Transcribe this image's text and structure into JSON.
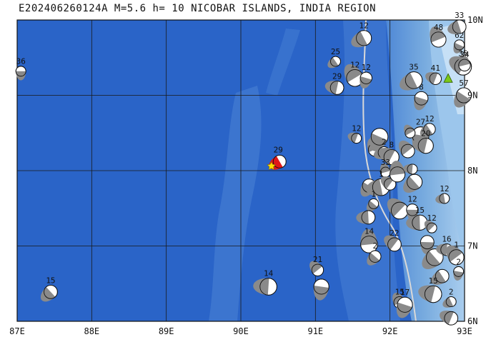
{
  "title": "E202406260124A M=5.6 h= 10 NICOBAR ISLANDS, INDIA REGION",
  "map": {
    "lon_range": [
      87,
      93
    ],
    "lat_range": [
      6,
      10
    ],
    "lon_labels": [
      "87E",
      "88E",
      "89E",
      "90E",
      "91E",
      "92E",
      "93E"
    ],
    "lat_labels": [
      "6N",
      "7N",
      "8N",
      "9N",
      "10N"
    ],
    "colors": {
      "ocean": "#2a64c8",
      "shelf": "#6aa0dc",
      "trench": "#3f7ad2",
      "grid": "#1a1a1a",
      "plate_boundary": "#d8d8d8",
      "main_event": "#e01818",
      "epicenter": "#ffe000",
      "volcano": "#7cc818"
    }
  },
  "main_event": {
    "lon": 90.52,
    "lat": 8.12,
    "depth": "29"
  },
  "epicenter_marker": {
    "lon": 90.41,
    "lat": 8.06
  },
  "volcano_marker": {
    "lon": 92.78,
    "lat": 9.22
  },
  "events": [
    {
      "lon": 87.05,
      "lat": 9.32,
      "depth": "36"
    },
    {
      "lon": 87.45,
      "lat": 6.39,
      "depth": "15"
    },
    {
      "lon": 90.37,
      "lat": 6.46,
      "depth": "14"
    },
    {
      "lon": 91.03,
      "lat": 6.68,
      "depth": "21"
    },
    {
      "lon": 91.08,
      "lat": 6.46,
      "depth": ""
    },
    {
      "lon": 91.27,
      "lat": 9.45,
      "depth": "25"
    },
    {
      "lon": 91.29,
      "lat": 9.1,
      "depth": "29"
    },
    {
      "lon": 91.53,
      "lat": 9.23,
      "depth": "12"
    },
    {
      "lon": 91.68,
      "lat": 9.23,
      "depth": "12"
    },
    {
      "lon": 91.65,
      "lat": 9.76,
      "depth": "12"
    },
    {
      "lon": 91.55,
      "lat": 8.43,
      "depth": "12"
    },
    {
      "lon": 91.8,
      "lat": 8.28,
      "depth": "1"
    },
    {
      "lon": 91.86,
      "lat": 8.45,
      "depth": ""
    },
    {
      "lon": 91.92,
      "lat": 8.24,
      "depth": "2"
    },
    {
      "lon": 92.02,
      "lat": 8.18,
      "depth": "8"
    },
    {
      "lon": 91.94,
      "lat": 7.98,
      "depth": "33"
    },
    {
      "lon": 91.72,
      "lat": 7.8,
      "depth": ""
    },
    {
      "lon": 91.88,
      "lat": 7.78,
      "depth": "1"
    },
    {
      "lon": 92.0,
      "lat": 7.82,
      "depth": ""
    },
    {
      "lon": 92.1,
      "lat": 7.95,
      "depth": ""
    },
    {
      "lon": 91.78,
      "lat": 7.56,
      "depth": "1"
    },
    {
      "lon": 91.71,
      "lat": 7.38,
      "depth": ""
    },
    {
      "lon": 92.13,
      "lat": 7.47,
      "depth": ""
    },
    {
      "lon": 92.3,
      "lat": 7.48,
      "depth": "12"
    },
    {
      "lon": 92.33,
      "lat": 7.85,
      "depth": ""
    },
    {
      "lon": 92.3,
      "lat": 8.02,
      "depth": ""
    },
    {
      "lon": 92.24,
      "lat": 8.26,
      "depth": ""
    },
    {
      "lon": 92.41,
      "lat": 8.47,
      "depth": "27"
    },
    {
      "lon": 92.53,
      "lat": 8.55,
      "depth": "12"
    },
    {
      "lon": 92.48,
      "lat": 8.33,
      "depth": "20"
    },
    {
      "lon": 92.27,
      "lat": 8.5,
      "depth": ""
    },
    {
      "lon": 92.42,
      "lat": 8.96,
      "depth": "8"
    },
    {
      "lon": 92.32,
      "lat": 9.2,
      "depth": "35"
    },
    {
      "lon": 92.61,
      "lat": 9.22,
      "depth": "41"
    },
    {
      "lon": 92.65,
      "lat": 9.74,
      "depth": "48"
    },
    {
      "lon": 92.93,
      "lat": 9.67,
      "depth": "62"
    },
    {
      "lon": 92.93,
      "lat": 9.91,
      "depth": "33"
    },
    {
      "lon": 92.98,
      "lat": 9.38,
      "depth": "35"
    },
    {
      "lon": 93.0,
      "lat": 9.4,
      "depth": "34"
    },
    {
      "lon": 92.99,
      "lat": 9.0,
      "depth": "57"
    },
    {
      "lon": 92.73,
      "lat": 7.63,
      "depth": "12"
    },
    {
      "lon": 92.06,
      "lat": 7.02,
      "depth": "22"
    },
    {
      "lon": 91.72,
      "lat": 7.02,
      "depth": "14"
    },
    {
      "lon": 91.8,
      "lat": 6.86,
      "depth": "2"
    },
    {
      "lon": 92.4,
      "lat": 7.31,
      "depth": "15"
    },
    {
      "lon": 92.56,
      "lat": 7.24,
      "depth": "12"
    },
    {
      "lon": 92.5,
      "lat": 7.05,
      "depth": ""
    },
    {
      "lon": 92.6,
      "lat": 6.85,
      "depth": ""
    },
    {
      "lon": 92.76,
      "lat": 6.95,
      "depth": "16"
    },
    {
      "lon": 92.89,
      "lat": 6.85,
      "depth": "1"
    },
    {
      "lon": 92.92,
      "lat": 6.66,
      "depth": "2"
    },
    {
      "lon": 92.7,
      "lat": 6.6,
      "depth": ""
    },
    {
      "lon": 92.58,
      "lat": 6.36,
      "depth": "15"
    },
    {
      "lon": 92.13,
      "lat": 6.25,
      "depth": "15"
    },
    {
      "lon": 92.2,
      "lat": 6.22,
      "depth": "17"
    },
    {
      "lon": 92.82,
      "lat": 6.26,
      "depth": "2"
    },
    {
      "lon": 92.82,
      "lat": 6.04,
      "depth": ""
    }
  ]
}
